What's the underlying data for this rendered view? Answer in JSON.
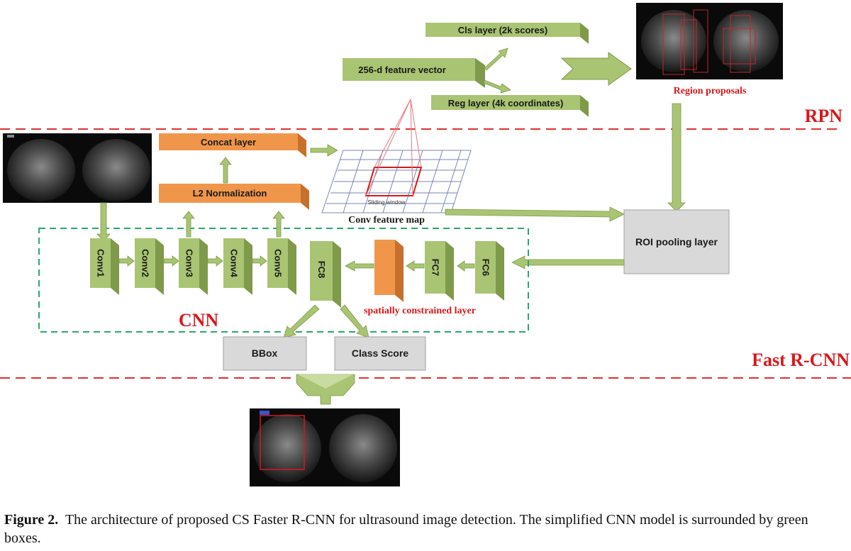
{
  "diagram": {
    "rpn": {
      "cls_layer": "Cls layer (2k scores)",
      "feature_vector": "256-d feature vector",
      "reg_layer": "Reg layer (4k coordinates)",
      "region_proposals": "Region proposals",
      "label": "RPN"
    },
    "concat_layer": "Concat layer",
    "l2_norm": "L2 Normalization",
    "sliding_window": "Sliding window",
    "conv_feature_map": "Conv feature map",
    "roi_pooling": "ROI pooling layer",
    "cnn": {
      "label": "CNN",
      "conv_layers": [
        "Conv1",
        "Conv2",
        "Conv3",
        "Conv4",
        "Conv5"
      ],
      "fc8": "FC8",
      "fc7": "FC7",
      "fc6": "FC6",
      "spatial_layer": "spatially constrained layer"
    },
    "bbox": "BBox",
    "class_score": "Class Score",
    "fast_rcnn_label": "Fast R-CNN",
    "colors": {
      "green_face": "#a9c472",
      "green_side": "#7e9a4a",
      "orange_face": "#f0964a",
      "orange_side": "#c7702c",
      "grey_box": "#d9d9d9",
      "red_label": "#d7191c",
      "dash_red": "#e0302f",
      "dash_green": "#2aa86a"
    }
  },
  "caption": {
    "figure_label": "Figure 2.",
    "text": "The architecture of proposed CS Faster R-CNN for ultrasound image detection. The simplified CNN model is surrounded by green boxes."
  }
}
